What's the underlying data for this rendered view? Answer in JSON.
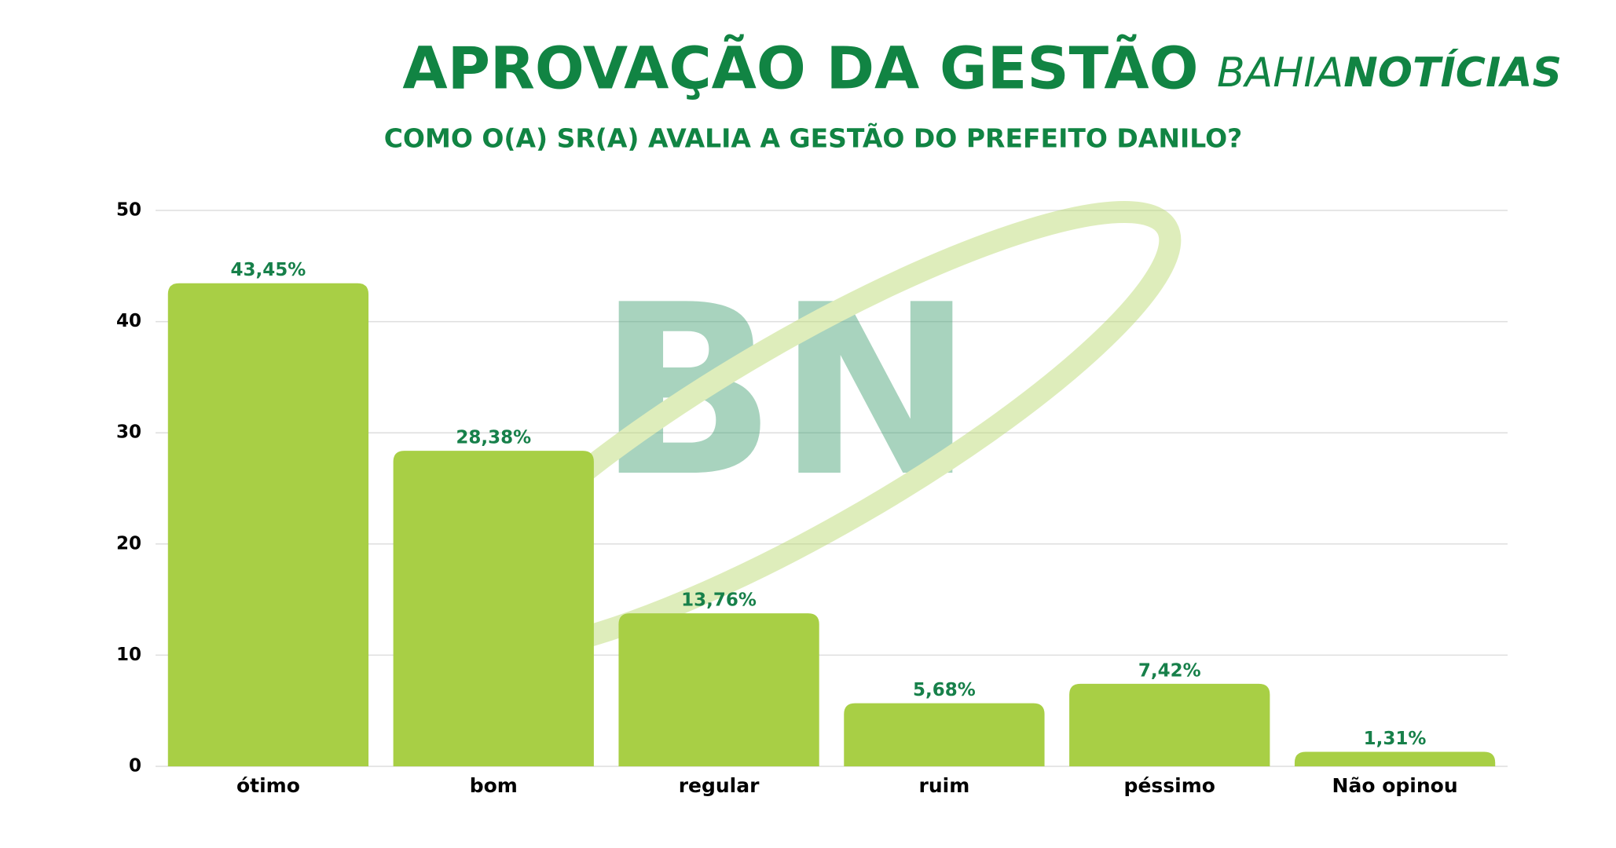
{
  "brand": {
    "part1": "BAHIA",
    "part2": "NOTÍCIAS"
  },
  "watermark": "BN",
  "chart_data": {
    "type": "bar",
    "title": "APROVAÇÃO DA GESTÃO",
    "subtitle": "COMO O(A) SR(A) AVALIA A GESTÃO DO PREFEITO DANILO?",
    "categories": [
      "ótimo",
      "bom",
      "regular",
      "ruim",
      "péssimo",
      "Não opinou"
    ],
    "values": [
      43.45,
      28.38,
      13.76,
      5.68,
      7.42,
      1.31
    ],
    "value_labels": [
      "43,45%",
      "28,38%",
      "13,76%",
      "5,68%",
      "7,42%",
      "1,31%"
    ],
    "color": "#a8cf45",
    "ylim": [
      0,
      50
    ],
    "yticks": [
      0,
      10,
      20,
      30,
      40,
      50
    ],
    "grid": true
  }
}
